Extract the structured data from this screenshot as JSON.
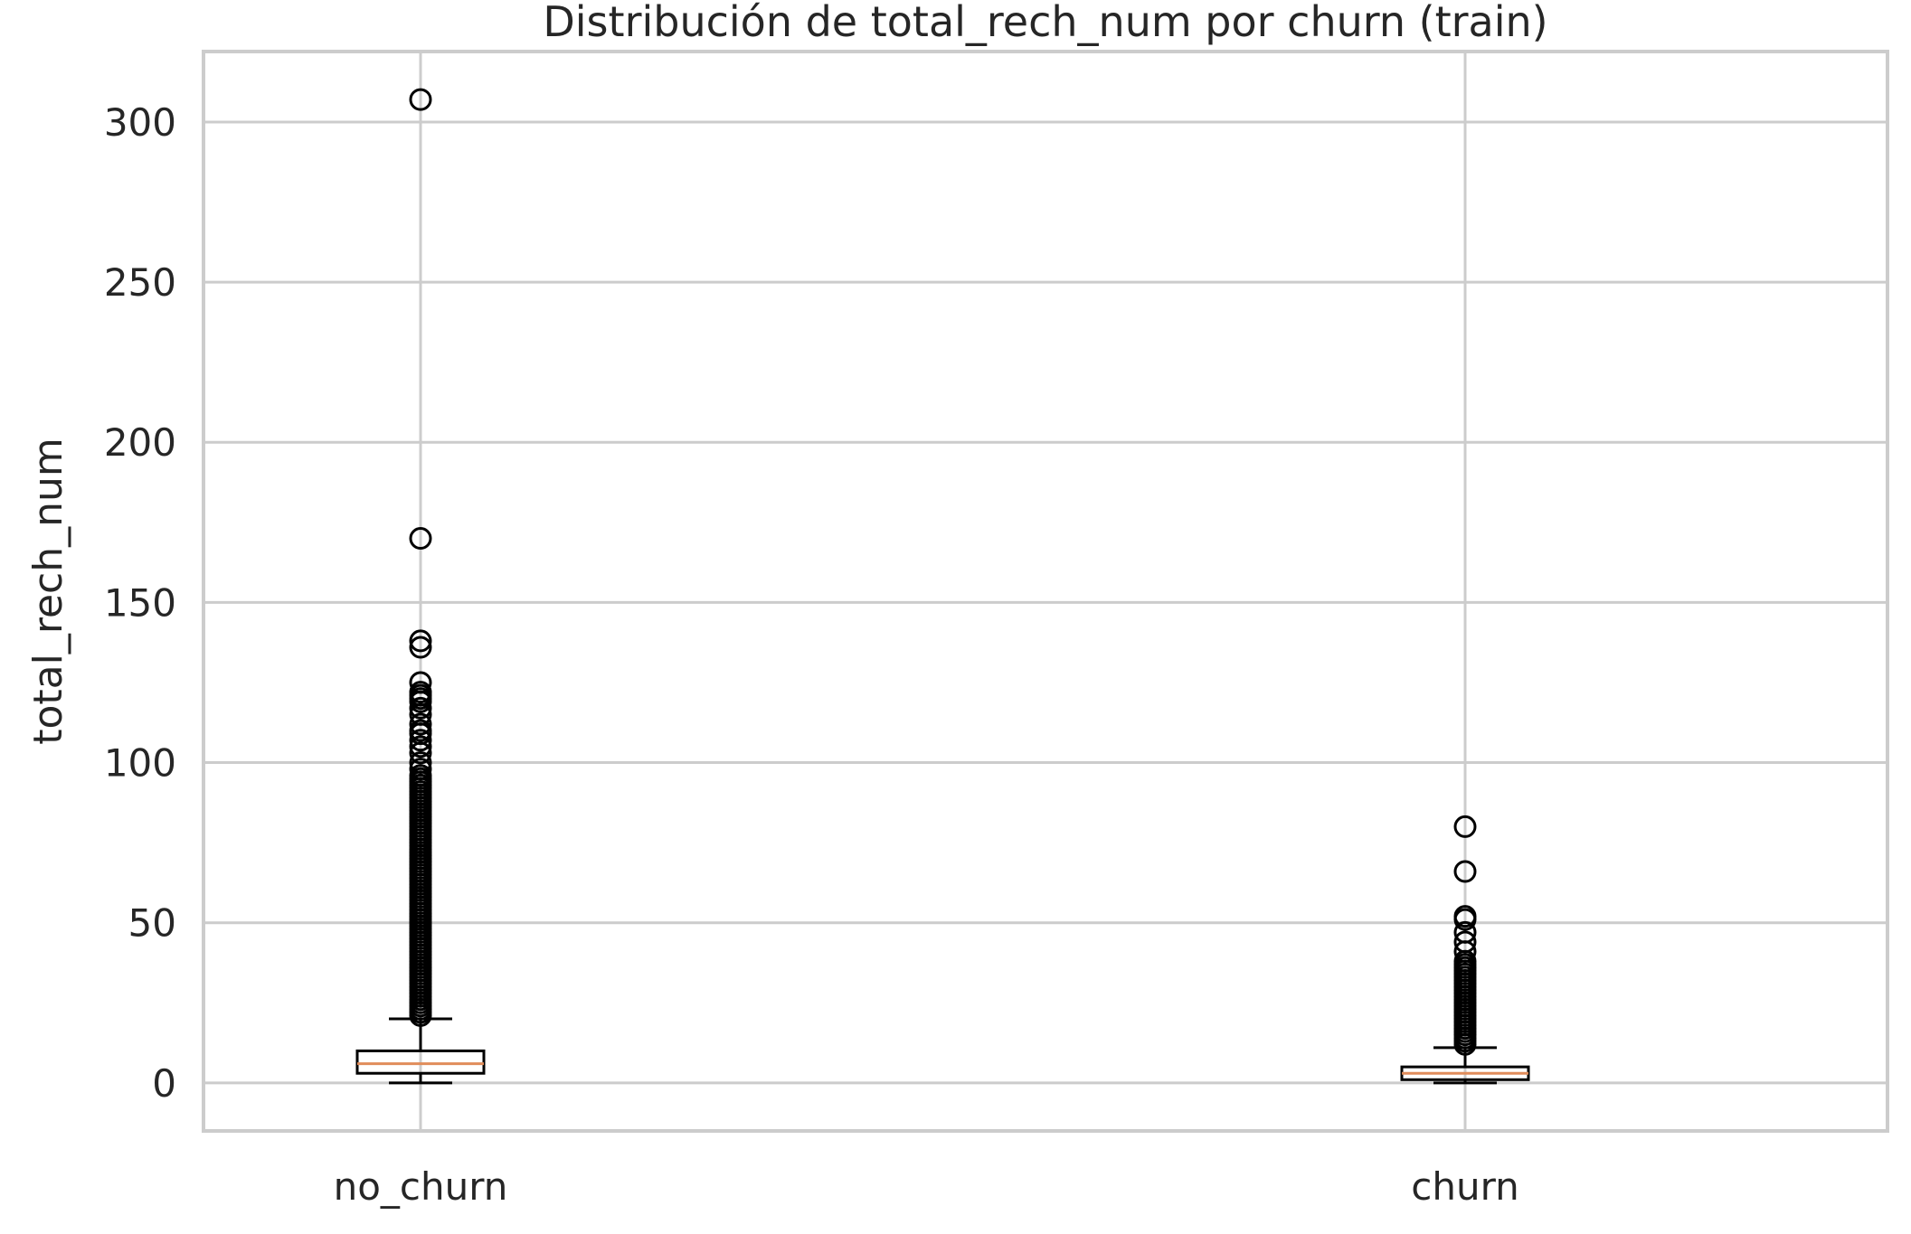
{
  "chart_data": {
    "type": "box",
    "title": "Distribución de total_rech_num por churn (train)",
    "xlabel": "",
    "ylabel": "total_rech_num",
    "categories": [
      "no_churn",
      "churn"
    ],
    "ylim": [
      -15,
      322
    ],
    "yticks": [
      0,
      50,
      100,
      150,
      200,
      250,
      300
    ],
    "grid": true,
    "colors": {
      "grid": "#cccccc",
      "frame": "#cccccc",
      "box": "#000000",
      "median": "#e08c5a",
      "text": "#262626"
    },
    "boxes": [
      {
        "category": "no_churn",
        "whislo": 0,
        "q1": 3,
        "median": 6,
        "q3": 10,
        "whishi": 20,
        "outliers": [
          21,
          22,
          23,
          24,
          25,
          26,
          27,
          28,
          29,
          30,
          31,
          32,
          33,
          34,
          35,
          36,
          37,
          38,
          39,
          40,
          41,
          42,
          43,
          44,
          45,
          46,
          47,
          48,
          49,
          50,
          51,
          52,
          53,
          54,
          55,
          56,
          57,
          58,
          59,
          60,
          61,
          62,
          63,
          64,
          65,
          66,
          67,
          68,
          69,
          70,
          71,
          72,
          73,
          74,
          75,
          76,
          77,
          78,
          79,
          80,
          81,
          82,
          83,
          84,
          85,
          86,
          87,
          88,
          89,
          90,
          91,
          92,
          93,
          94,
          95,
          96,
          98,
          100,
          103,
          105,
          107,
          109,
          110,
          112,
          115,
          117,
          119,
          120,
          121,
          122,
          125,
          136,
          138,
          170,
          307
        ]
      },
      {
        "category": "churn",
        "whislo": 0,
        "q1": 1,
        "median": 3,
        "q3": 5,
        "whishi": 11,
        "outliers": [
          12,
          13,
          14,
          15,
          16,
          17,
          18,
          19,
          20,
          21,
          22,
          23,
          24,
          25,
          26,
          27,
          28,
          29,
          30,
          31,
          32,
          33,
          34,
          35,
          36,
          37,
          38,
          41,
          44,
          47,
          51,
          52,
          66,
          80
        ]
      }
    ]
  }
}
